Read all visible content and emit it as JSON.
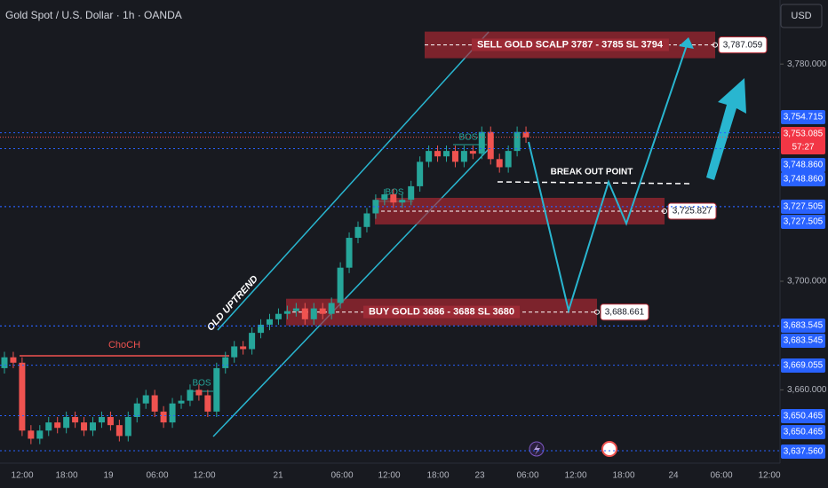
{
  "chart_data": {
    "type": "candlestick",
    "title": "Gold Spot / U.S. Dollar · 1h · OANDA",
    "currency": "USD",
    "open": [
      3668,
      3672,
      3670,
      3645,
      3642,
      3645,
      3648,
      3646,
      3650,
      3648,
      3645,
      3648,
      3650,
      3647,
      3643,
      3650,
      3655,
      3658,
      3652,
      3648,
      3655,
      3656,
      3660,
      3658,
      3652,
      3668,
      3672,
      3676,
      3675,
      3681,
      3684,
      3686,
      3688,
      3689,
      3690,
      3686,
      3690,
      3688,
      3692,
      3705,
      3716,
      3720,
      3725,
      3730,
      3732,
      3729,
      3730,
      3735,
      3744,
      3748,
      3746,
      3748,
      3744,
      3748,
      3747,
      3755,
      3745,
      3742,
      3748,
      3755
    ],
    "high": [
      3674,
      3674,
      3672,
      3647,
      3647,
      3650,
      3650,
      3652,
      3652,
      3650,
      3650,
      3652,
      3652,
      3649,
      3652,
      3657,
      3660,
      3660,
      3654,
      3657,
      3658,
      3662,
      3662,
      3660,
      3670,
      3674,
      3678,
      3678,
      3683,
      3686,
      3688,
      3690,
      3691,
      3692,
      3692,
      3692,
      3692,
      3694,
      3707,
      3718,
      3722,
      3727,
      3732,
      3734,
      3734,
      3732,
      3737,
      3746,
      3750,
      3750,
      3750,
      3750,
      3750,
      3750,
      3757,
      3757,
      3747,
      3750,
      3757,
      3757
    ],
    "low": [
      3666,
      3668,
      3643,
      3640,
      3640,
      3643,
      3644,
      3644,
      3646,
      3643,
      3643,
      3646,
      3645,
      3641,
      3641,
      3648,
      3653,
      3650,
      3646,
      3646,
      3653,
      3654,
      3656,
      3650,
      3650,
      3666,
      3670,
      3673,
      3673,
      3679,
      3682,
      3684,
      3686,
      3687,
      3684,
      3684,
      3686,
      3686,
      3690,
      3703,
      3714,
      3718,
      3723,
      3728,
      3727,
      3727,
      3728,
      3733,
      3742,
      3744,
      3744,
      3742,
      3742,
      3745,
      3745,
      3743,
      3740,
      3740,
      3746,
      3751
    ],
    "close": [
      3672,
      3670,
      3645,
      3642,
      3645,
      3648,
      3646,
      3650,
      3648,
      3645,
      3648,
      3650,
      3647,
      3643,
      3650,
      3655,
      3658,
      3652,
      3648,
      3655,
      3656,
      3660,
      3658,
      3652,
      3668,
      3672,
      3676,
      3675,
      3681,
      3684,
      3686,
      3688,
      3689,
      3690,
      3686,
      3690,
      3688,
      3692,
      3705,
      3716,
      3720,
      3725,
      3730,
      3732,
      3729,
      3730,
      3735,
      3744,
      3748,
      3746,
      3748,
      3744,
      3748,
      3747,
      3755,
      3745,
      3742,
      3748,
      3755,
      3753
    ],
    "up_color": "#26a69a",
    "down_color": "#ef5350",
    "ylim": [
      3633,
      3803.6
    ],
    "yticks": [
      {
        "value": 3660,
        "label": "3,660.000"
      },
      {
        "value": 3700,
        "label": "3,700.000"
      },
      {
        "value": 3780,
        "label": "3,780.000"
      }
    ],
    "x_labels": [
      "12:00",
      "18:00",
      "19",
      "06:00",
      "12:00",
      "21",
      "06:00",
      "12:00",
      "18:00",
      "23",
      "06:00",
      "12:00",
      "18:00",
      "24",
      "06:00",
      "12:00"
    ],
    "current_price": {
      "value": 3753.085,
      "label": "3,753.085",
      "countdown": "57:27"
    },
    "levels": [
      {
        "value": 3754.715,
        "label": "3,754.715"
      },
      {
        "value": 3748.86,
        "label": "3,748.860"
      },
      {
        "value": 3748.86,
        "label": "3,748.860"
      },
      {
        "value": 3727.505,
        "label": "3,727.505"
      },
      {
        "value": 3727.505,
        "label": "3,727.505"
      },
      {
        "value": 3683.545,
        "label": "3,683.545"
      },
      {
        "value": 3683.545,
        "label": "3,683.545"
      },
      {
        "value": 3669.055,
        "label": "3,669.055"
      },
      {
        "value": 3650.465,
        "label": "3,650.465"
      },
      {
        "value": 3650.465,
        "label": "3,650.465"
      },
      {
        "value": 3637.56,
        "label": "3,637.560"
      }
    ],
    "zones": [
      {
        "text": "SELL GOLD SCALP 3787  - 3785 SL 3794",
        "value": 3787.059,
        "label": "3,787.059"
      },
      {
        "text": "",
        "value": 3725.827,
        "label": "3,725.827"
      },
      {
        "text": "BUY GOLD 3686 - 3688 SL 3680",
        "value": 3688.661,
        "label": "3,688.661"
      }
    ],
    "annotations": {
      "breakout": "BREAK OUT POINT",
      "trend": "OLD UPTREND",
      "choch": "ChoCH",
      "bos": [
        "BOS",
        "BOS",
        "BOS"
      ]
    }
  }
}
